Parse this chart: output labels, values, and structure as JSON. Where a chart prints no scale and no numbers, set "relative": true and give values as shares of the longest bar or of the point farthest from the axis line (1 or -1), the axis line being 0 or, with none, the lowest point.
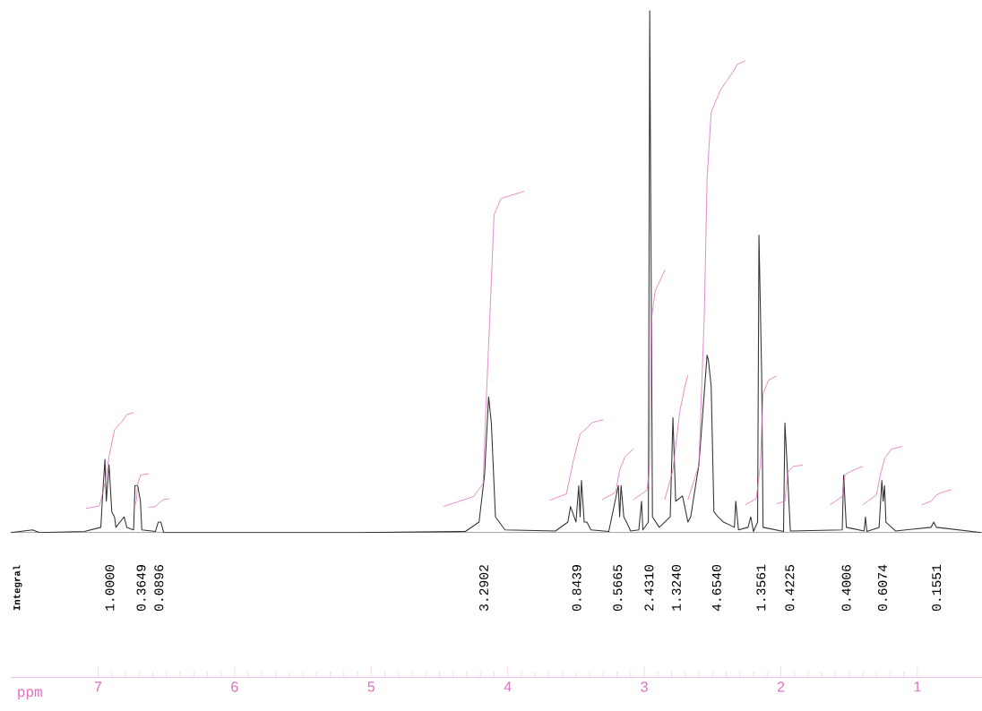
{
  "chart_data": {
    "type": "line",
    "relative": true,
    "xlabel": "ppm",
    "xlim": [
      7.64,
      0.53
    ],
    "xticks": [
      7,
      6,
      5,
      4,
      3,
      2,
      1
    ],
    "marker": "none",
    "line_style": "solid",
    "series": [
      {
        "color": "#333333",
        "x": [
          7.64,
          7.48,
          7.43,
          7.1,
          6.98,
          6.97,
          6.95,
          6.94,
          6.92,
          6.9,
          6.88,
          6.87,
          6.81,
          6.79,
          6.74,
          6.73,
          6.71,
          6.69,
          6.68,
          6.58,
          6.56,
          6.54,
          6.52,
          5.1,
          4.31,
          4.21,
          4.17,
          4.14,
          4.12,
          4.09,
          4.02,
          3.65,
          3.56,
          3.54,
          3.5,
          3.48,
          3.47,
          3.46,
          3.44,
          3.42,
          3.39,
          3.26,
          3.19,
          3.18,
          3.17,
          3.15,
          3.13,
          3.1,
          3.04,
          3.02,
          3.01,
          2.97,
          2.96,
          2.94,
          2.89,
          2.81,
          2.79,
          2.77,
          2.72,
          2.68,
          2.66,
          2.6,
          2.56,
          2.54,
          2.53,
          2.51,
          2.49,
          2.46,
          2.42,
          2.34,
          2.33,
          2.31,
          2.24,
          2.22,
          2.2,
          2.17,
          2.16,
          2.14,
          2.13,
          1.98,
          1.97,
          1.95,
          1.93,
          1.55,
          1.54,
          1.52,
          1.39,
          1.38,
          1.37,
          1.28,
          1.26,
          1.25,
          1.24,
          1.23,
          1.16,
          0.9,
          0.88,
          0.86,
          0.53
        ],
        "values": [
          0,
          0.005,
          0,
          0.002,
          0.01,
          0.06,
          0.14,
          0.06,
          0.13,
          0.04,
          0.03,
          0.01,
          0.03,
          0.01,
          0.005,
          0.09,
          0.09,
          0.06,
          0.005,
          0.002,
          0.02,
          0.02,
          0,
          0,
          0.002,
          0.02,
          0.11,
          0.26,
          0.21,
          0.03,
          0.005,
          0.003,
          0.02,
          0.05,
          0.02,
          0.09,
          0.03,
          0.1,
          0.02,
          0.02,
          0.005,
          0.002,
          0.09,
          0.03,
          0.09,
          0.03,
          0.02,
          0.003,
          0.005,
          0.06,
          0.005,
          0.02,
          1.0,
          0.03,
          0.01,
          0.03,
          0.22,
          0.06,
          0.07,
          0.02,
          0.03,
          0.13,
          0.27,
          0.34,
          0.33,
          0.28,
          0.04,
          0.03,
          0.02,
          0.01,
          0.06,
          0.005,
          0.01,
          0.03,
          0.002,
          0.02,
          0.57,
          0.3,
          0.01,
          0.002,
          0.21,
          0.11,
          0.003,
          0.005,
          0.11,
          0.01,
          0.003,
          0.03,
          0.002,
          0.01,
          0.1,
          0.06,
          0.09,
          0.02,
          0.003,
          0.01,
          0.02,
          0.01,
          0
        ]
      },
      {
        "color": "#e070c0",
        "x": [
          7.09,
          6.99,
          6.95,
          6.92,
          6.88,
          6.83,
          6.79,
          6.74
        ],
        "values": [
          0.046,
          0.051,
          0.094,
          0.146,
          0.197,
          0.211,
          0.226,
          0.23
        ]
      },
      {
        "color": "#e070c0",
        "x": [
          6.74,
          6.72,
          6.71,
          6.69,
          6.63
        ],
        "values": [
          0.046,
          0.06,
          0.094,
          0.11,
          0.113
        ]
      },
      {
        "color": "#e070c0",
        "x": [
          6.63,
          6.58,
          6.54,
          6.52,
          6.48
        ],
        "values": [
          0.048,
          0.05,
          0.06,
          0.063,
          0.065
        ]
      },
      {
        "color": "#e070c0",
        "x": [
          4.47,
          4.25,
          4.18,
          4.16,
          4.13,
          4.1,
          4.05,
          3.88
        ],
        "values": [
          0.05,
          0.069,
          0.094,
          0.237,
          0.42,
          0.609,
          0.64,
          0.654
        ]
      },
      {
        "color": "#e070c0",
        "x": [
          3.69,
          3.57,
          3.52,
          3.47,
          3.42,
          3.38,
          3.3
        ],
        "values": [
          0.062,
          0.074,
          0.137,
          0.189,
          0.2,
          0.211,
          0.216
        ]
      },
      {
        "color": "#e070c0",
        "x": [
          3.31,
          3.21,
          3.18,
          3.14,
          3.08
        ],
        "values": [
          0.063,
          0.077,
          0.12,
          0.146,
          0.16
        ]
      },
      {
        "color": "#e070c0",
        "x": [
          3.08,
          2.98,
          2.96,
          2.95,
          2.92,
          2.85
        ],
        "values": [
          0.063,
          0.081,
          0.129,
          0.403,
          0.463,
          0.503
        ]
      },
      {
        "color": "#e070c0",
        "x": [
          2.85,
          2.79,
          2.74,
          2.7,
          2.68
        ],
        "values": [
          0.063,
          0.12,
          0.232,
          0.283,
          0.302
        ]
      },
      {
        "color": "#e070c0",
        "x": [
          2.68,
          2.6,
          2.56,
          2.54,
          2.51,
          2.44,
          2.34,
          2.32,
          2.26
        ],
        "values": [
          0.063,
          0.129,
          0.42,
          0.678,
          0.806,
          0.849,
          0.887,
          0.897,
          0.904
        ]
      },
      {
        "color": "#e070c0",
        "x": [
          2.26,
          2.18,
          2.15,
          2.13,
          2.09,
          2.03
        ],
        "values": [
          0.053,
          0.065,
          0.129,
          0.266,
          0.292,
          0.3
        ]
      },
      {
        "color": "#e070c0",
        "x": [
          2.03,
          1.97,
          1.95,
          1.91,
          1.84
        ],
        "values": [
          0.055,
          0.06,
          0.115,
          0.127,
          0.129
        ]
      },
      {
        "color": "#e070c0",
        "x": [
          1.64,
          1.55,
          1.53,
          1.49,
          1.4
        ],
        "values": [
          0.053,
          0.069,
          0.111,
          0.117,
          0.127
        ]
      },
      {
        "color": "#e070c0",
        "x": [
          1.4,
          1.3,
          1.27,
          1.24,
          1.19,
          1.11
        ],
        "values": [
          0.053,
          0.072,
          0.111,
          0.142,
          0.16,
          0.165
        ]
      },
      {
        "color": "#e070c0",
        "x": [
          0.97,
          0.9,
          0.86,
          0.82,
          0.75
        ],
        "values": [
          0.053,
          0.06,
          0.072,
          0.077,
          0.082
        ]
      }
    ],
    "annotations": [
      "Integral",
      "1.0000",
      "0.3649",
      "0.0896",
      "3.2902",
      "0.8439",
      "0.5665",
      "2.4310",
      "1.3240",
      "4.6540",
      "1.3561",
      "0.4225",
      "0.4006",
      "0.6074",
      "0.1551"
    ]
  }
}
